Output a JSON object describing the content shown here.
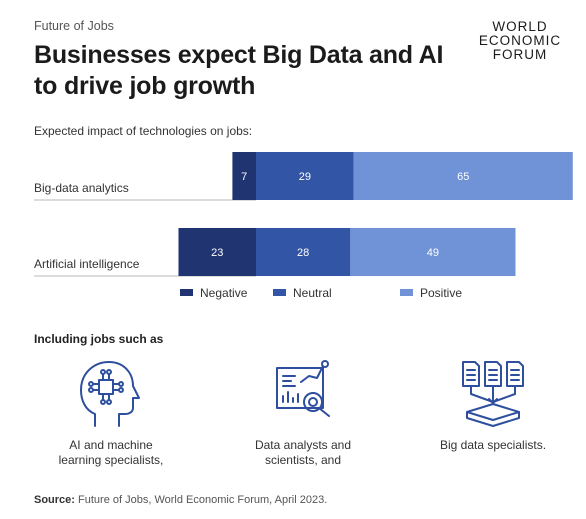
{
  "header": {
    "eyebrow": "Future of Jobs",
    "title": "Businesses expect Big Data and AI to drive job growth",
    "logo_lines": [
      "WORLD",
      "ECONOMIC",
      "FORUM"
    ]
  },
  "chart_data": {
    "type": "bar",
    "orientation": "horizontal",
    "stacked": true,
    "title": "Expected impact of technologies on jobs:",
    "categories": [
      "Big-data analytics",
      "Artificial intelligence"
    ],
    "series": [
      {
        "name": "Negative",
        "values": [
          7,
          23
        ],
        "color": "#1f3470"
      },
      {
        "name": "Neutral",
        "values": [
          29,
          28
        ],
        "color": "#3355a6"
      },
      {
        "name": "Positive",
        "values": [
          65,
          49
        ],
        "color": "#6f93d6"
      }
    ],
    "offsets": [
      -7,
      -23
    ],
    "legend_position": "bottom",
    "grid": false
  },
  "jobs": {
    "heading": "Including jobs such as",
    "items": [
      {
        "label_line1": "AI and machine",
        "label_line2": "learning specialists,",
        "icon": "ai-head-icon"
      },
      {
        "label_line1": "Data analysts and",
        "label_line2": "scientists, and",
        "icon": "data-dashboard-icon"
      },
      {
        "label_line1": "Big data specialists.",
        "label_line2": "",
        "icon": "big-data-documents-icon"
      }
    ]
  },
  "source": {
    "label": "Source:",
    "text": " Future of Jobs, World Economic Forum, April 2023."
  },
  "colors": {
    "negative": "#1f3470",
    "neutral": "#3355a6",
    "positive": "#6f93d6",
    "icon_stroke": "#2e4f9e"
  }
}
